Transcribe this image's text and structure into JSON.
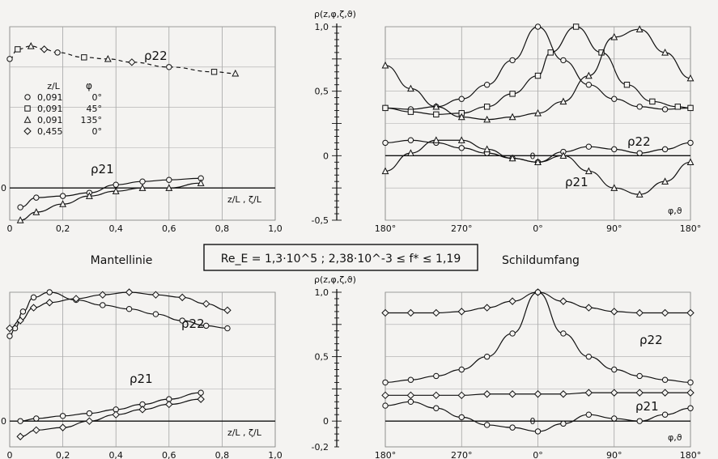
{
  "header": {
    "left_caption": "Mantellinie",
    "center_box": "Re_E = 1,3·10^5 ;   2,38·10^-3 ≤ f* ≤ 1,19",
    "right_caption": "Schildumfang"
  },
  "legend": {
    "col_z": "z/L",
    "col_phi": "φ",
    "rows": [
      {
        "marker": "circle",
        "z": "0,091",
        "phi": "0°"
      },
      {
        "marker": "square",
        "z": "0,091",
        "phi": "45°"
      },
      {
        "marker": "triangle",
        "z": "0,091",
        "phi": "135°"
      },
      {
        "marker": "diamond",
        "z": "0,455",
        "phi": "0°"
      }
    ]
  },
  "chart_data": [
    {
      "type": "line",
      "id": "top-left",
      "xlabel": "z/L , ζ/L",
      "xlim": [
        0,
        1.0
      ],
      "ylim": [
        -0.2,
        1.0
      ],
      "xticks": [
        "0",
        "0,2",
        "0,4",
        "0,6",
        "0,8",
        "1,0"
      ],
      "yticks": [
        "0"
      ],
      "labels": [
        "ρ22",
        "ρ21"
      ],
      "series": [
        {
          "name": "ρ21",
          "marker": "circle",
          "x": [
            0.04,
            0.1,
            0.2,
            0.3,
            0.4,
            0.5,
            0.6,
            0.72
          ],
          "y": [
            -0.12,
            -0.06,
            -0.05,
            -0.03,
            0.02,
            0.04,
            0.05,
            0.06
          ]
        },
        {
          "name": "ρ21",
          "marker": "triangle",
          "x": [
            0.04,
            0.1,
            0.2,
            0.3,
            0.4,
            0.5,
            0.6,
            0.72
          ],
          "y": [
            -0.2,
            -0.15,
            -0.1,
            -0.05,
            -0.02,
            0.0,
            0.0,
            0.03
          ]
        },
        {
          "name": "ρ22",
          "marker": "mixed",
          "style": "dashed",
          "x": [
            0.0,
            0.03,
            0.08,
            0.13,
            0.18,
            0.28,
            0.37,
            0.46,
            0.6,
            0.77,
            0.85
          ],
          "y": [
            0.8,
            0.86,
            0.88,
            0.86,
            0.84,
            0.81,
            0.8,
            0.78,
            0.75,
            0.72,
            0.71
          ]
        }
      ]
    },
    {
      "type": "line",
      "id": "top-right",
      "ylabel": "ρ(z,φ,ζ,ϑ)",
      "xlabel": "φ,ϑ",
      "xlim": [
        -180,
        180
      ],
      "ylim": [
        -0.5,
        1.0
      ],
      "xticks": [
        "180°",
        "270°",
        "0°",
        "90°",
        "180°"
      ],
      "yticks": [
        "1,0",
        "0,5",
        "0",
        "-0,5"
      ],
      "labels": [
        "ρ22",
        "ρ21"
      ],
      "series": [
        {
          "name": "ρ22",
          "marker": "circle",
          "x": [
            -180,
            -150,
            -120,
            -90,
            -60,
            -30,
            0,
            30,
            60,
            90,
            120,
            150,
            180
          ],
          "y": [
            0.37,
            0.36,
            0.38,
            0.44,
            0.55,
            0.74,
            1.0,
            0.74,
            0.55,
            0.44,
            0.38,
            0.36,
            0.37
          ]
        },
        {
          "name": "ρ22",
          "marker": "square",
          "x": [
            -180,
            -150,
            -120,
            -90,
            -60,
            -30,
            0,
            15,
            45,
            75,
            105,
            135,
            165,
            180
          ],
          "y": [
            0.37,
            0.34,
            0.32,
            0.33,
            0.38,
            0.48,
            0.62,
            0.8,
            1.0,
            0.8,
            0.55,
            0.42,
            0.38,
            0.37
          ]
        },
        {
          "name": "ρ22",
          "marker": "triangle",
          "x": [
            -180,
            -150,
            -120,
            -90,
            -60,
            -30,
            0,
            30,
            60,
            90,
            120,
            150,
            180
          ],
          "y": [
            0.7,
            0.52,
            0.38,
            0.3,
            0.28,
            0.3,
            0.33,
            0.42,
            0.62,
            0.92,
            0.98,
            0.8,
            0.6
          ]
        },
        {
          "name": "ρ21",
          "marker": "circle",
          "x": [
            -180,
            -150,
            -120,
            -90,
            -60,
            -30,
            0,
            30,
            60,
            90,
            120,
            150,
            180
          ],
          "y": [
            0.1,
            0.12,
            0.1,
            0.06,
            0.02,
            -0.02,
            -0.05,
            0.03,
            0.07,
            0.05,
            0.02,
            0.05,
            0.1
          ]
        },
        {
          "name": "ρ21",
          "marker": "triangle",
          "x": [
            -180,
            -150,
            -120,
            -90,
            -60,
            -30,
            0,
            30,
            60,
            90,
            120,
            150,
            180
          ],
          "y": [
            -0.12,
            0.02,
            0.12,
            0.12,
            0.05,
            -0.02,
            -0.05,
            0.0,
            -0.12,
            -0.25,
            -0.3,
            -0.2,
            -0.05
          ]
        }
      ]
    },
    {
      "type": "line",
      "id": "bottom-left",
      "xlabel": "z/L , ζ/L",
      "xlim": [
        0,
        1.0
      ],
      "ylim": [
        -0.2,
        1.0
      ],
      "xticks": [
        "0",
        "0,2",
        "0,4",
        "0,6",
        "0,8",
        "1,0"
      ],
      "yticks": [
        "0"
      ],
      "labels": [
        "ρ22",
        "ρ21"
      ],
      "series": [
        {
          "name": "ρ22",
          "marker": "circle",
          "x": [
            0.0,
            0.02,
            0.05,
            0.09,
            0.15,
            0.25,
            0.35,
            0.45,
            0.55,
            0.65,
            0.74,
            0.82
          ],
          "y": [
            0.66,
            0.72,
            0.85,
            0.96,
            1.0,
            0.94,
            0.9,
            0.87,
            0.83,
            0.78,
            0.74,
            0.72
          ]
        },
        {
          "name": "ρ22",
          "marker": "diamond",
          "x": [
            0.0,
            0.04,
            0.09,
            0.15,
            0.25,
            0.35,
            0.45,
            0.55,
            0.65,
            0.74,
            0.82
          ],
          "y": [
            0.72,
            0.78,
            0.88,
            0.92,
            0.95,
            0.98,
            1.0,
            0.98,
            0.96,
            0.91,
            0.86
          ]
        },
        {
          "name": "ρ21",
          "marker": "circle",
          "x": [
            0.04,
            0.1,
            0.2,
            0.3,
            0.4,
            0.5,
            0.6,
            0.72
          ],
          "y": [
            0.0,
            0.02,
            0.04,
            0.06,
            0.09,
            0.13,
            0.17,
            0.22
          ]
        },
        {
          "name": "ρ21",
          "marker": "diamond",
          "x": [
            0.04,
            0.1,
            0.2,
            0.3,
            0.4,
            0.5,
            0.6,
            0.72
          ],
          "y": [
            -0.12,
            -0.07,
            -0.05,
            0.0,
            0.05,
            0.09,
            0.13,
            0.17
          ]
        }
      ]
    },
    {
      "type": "line",
      "id": "bottom-right",
      "ylabel": "ρ(z,φ,ζ,ϑ)",
      "xlabel": "φ,ϑ",
      "xlim": [
        -180,
        180
      ],
      "ylim": [
        -0.2,
        1.0
      ],
      "xticks": [
        "180°",
        "270°",
        "0°",
        "90°",
        "180°"
      ],
      "yticks": [
        "1,0",
        "0,5",
        "0",
        "-0,2"
      ],
      "labels": [
        "ρ22",
        "ρ21"
      ],
      "series": [
        {
          "name": "ρ22",
          "marker": "diamond",
          "x": [
            -180,
            -150,
            -120,
            -90,
            -60,
            -30,
            0,
            30,
            60,
            90,
            120,
            150,
            180
          ],
          "y": [
            0.84,
            0.84,
            0.84,
            0.85,
            0.88,
            0.93,
            1.0,
            0.93,
            0.88,
            0.85,
            0.84,
            0.84,
            0.84
          ]
        },
        {
          "name": "ρ22",
          "marker": "circle",
          "x": [
            -180,
            -150,
            -120,
            -90,
            -60,
            -30,
            0,
            30,
            60,
            90,
            120,
            150,
            180
          ],
          "y": [
            0.3,
            0.32,
            0.35,
            0.4,
            0.5,
            0.68,
            1.0,
            0.68,
            0.5,
            0.4,
            0.35,
            0.32,
            0.3
          ]
        },
        {
          "name": "ρ21",
          "marker": "diamond",
          "x": [
            -180,
            -150,
            -120,
            -90,
            -60,
            -30,
            0,
            30,
            60,
            90,
            120,
            150,
            180
          ],
          "y": [
            0.2,
            0.2,
            0.2,
            0.2,
            0.21,
            0.21,
            0.21,
            0.21,
            0.22,
            0.22,
            0.22,
            0.22,
            0.22
          ]
        },
        {
          "name": "ρ21",
          "marker": "circle",
          "x": [
            -180,
            -150,
            -120,
            -90,
            -60,
            -30,
            0,
            30,
            60,
            90,
            120,
            150,
            180
          ],
          "y": [
            0.12,
            0.15,
            0.1,
            0.03,
            -0.03,
            -0.05,
            -0.08,
            -0.02,
            0.05,
            0.02,
            0.0,
            0.05,
            0.1
          ]
        }
      ]
    }
  ]
}
